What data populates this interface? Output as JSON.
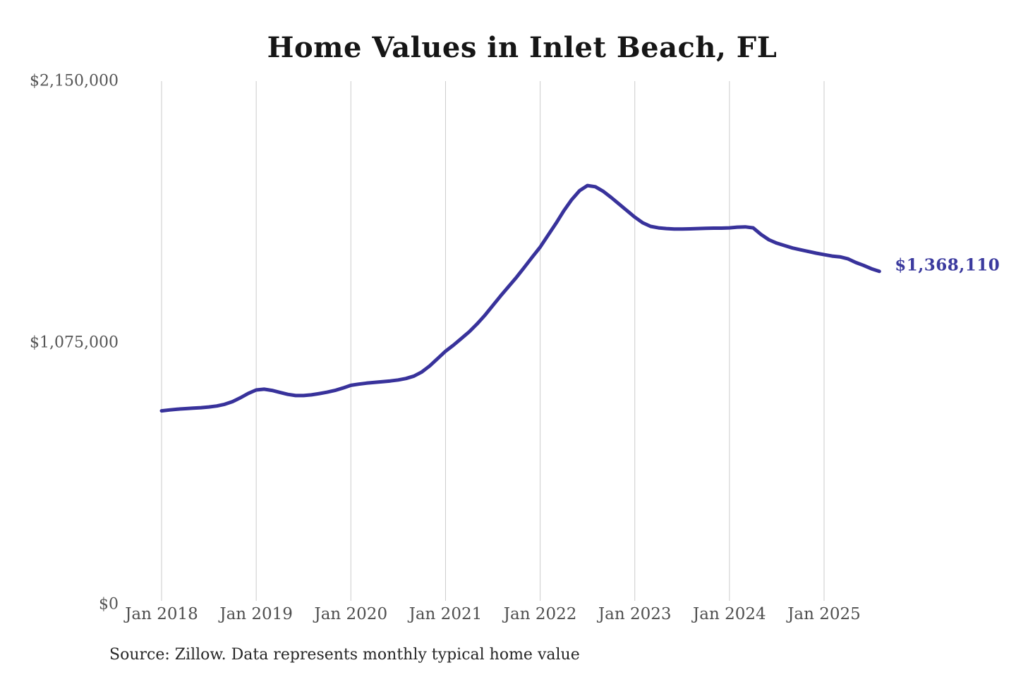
{
  "title": "Home Values in Inlet Beach, FL",
  "source_note": "Source: Zillow. Data represents monthly typical home value",
  "colors": {
    "line": "#38329B",
    "value_label": "#3B3A9E",
    "grid": "#CBCBCB",
    "axis_label": "#555555",
    "title_text": "#161616",
    "source_text": "#262626",
    "background": "#FFFFFF"
  },
  "chart_data": {
    "type": "line",
    "title": "Home Values in Inlet Beach, FL",
    "xlabel": "",
    "ylabel": "",
    "ylim": [
      0,
      2150000
    ],
    "grid": "vertical-only",
    "legend": "none",
    "frequency": "monthly",
    "x_start": "2018-01",
    "x_end": "2025-08",
    "x_tick_labels": [
      "Jan 2018",
      "Jan 2019",
      "Jan 2020",
      "Jan 2021",
      "Jan 2022",
      "Jan 2023",
      "Jan 2024",
      "Jan 2025"
    ],
    "y_ticks": [
      {
        "value": 0,
        "label": "$0"
      },
      {
        "value": 1075000,
        "label": "$1,075,000"
      },
      {
        "value": 2150000,
        "label": "$2,150,000"
      }
    ],
    "series": [
      {
        "name": "Monthly typical home value (USD)",
        "values": [
          795000,
          799000,
          802000,
          804000,
          806000,
          808000,
          811000,
          815000,
          822000,
          833000,
          849000,
          867000,
          881000,
          884000,
          879000,
          871000,
          863000,
          858000,
          858000,
          861000,
          866000,
          872000,
          879000,
          889000,
          900000,
          905000,
          909000,
          912000,
          915000,
          918000,
          922000,
          928000,
          938000,
          955000,
          980000,
          1010000,
          1040000,
          1065000,
          1092000,
          1120000,
          1152000,
          1188000,
          1228000,
          1268000,
          1306000,
          1344000,
          1385000,
          1427000,
          1468000,
          1517000,
          1565000,
          1617000,
          1663000,
          1700000,
          1721000,
          1716000,
          1697000,
          1672000,
          1645000,
          1618000,
          1591000,
          1568000,
          1553000,
          1547000,
          1544000,
          1542000,
          1542000,
          1543000,
          1544000,
          1545000,
          1546000,
          1546000,
          1547000,
          1550000,
          1551000,
          1547000,
          1520000,
          1498000,
          1484000,
          1474000,
          1464000,
          1457000,
          1450000,
          1443000,
          1437000,
          1431000,
          1428000,
          1420000,
          1405000,
          1393000,
          1379000,
          1368110
        ]
      }
    ],
    "annotations": {
      "last_value": 1368110,
      "last_value_label": "$1,368,110",
      "peak_value": 1721000,
      "peak_month": "2022-07"
    }
  }
}
